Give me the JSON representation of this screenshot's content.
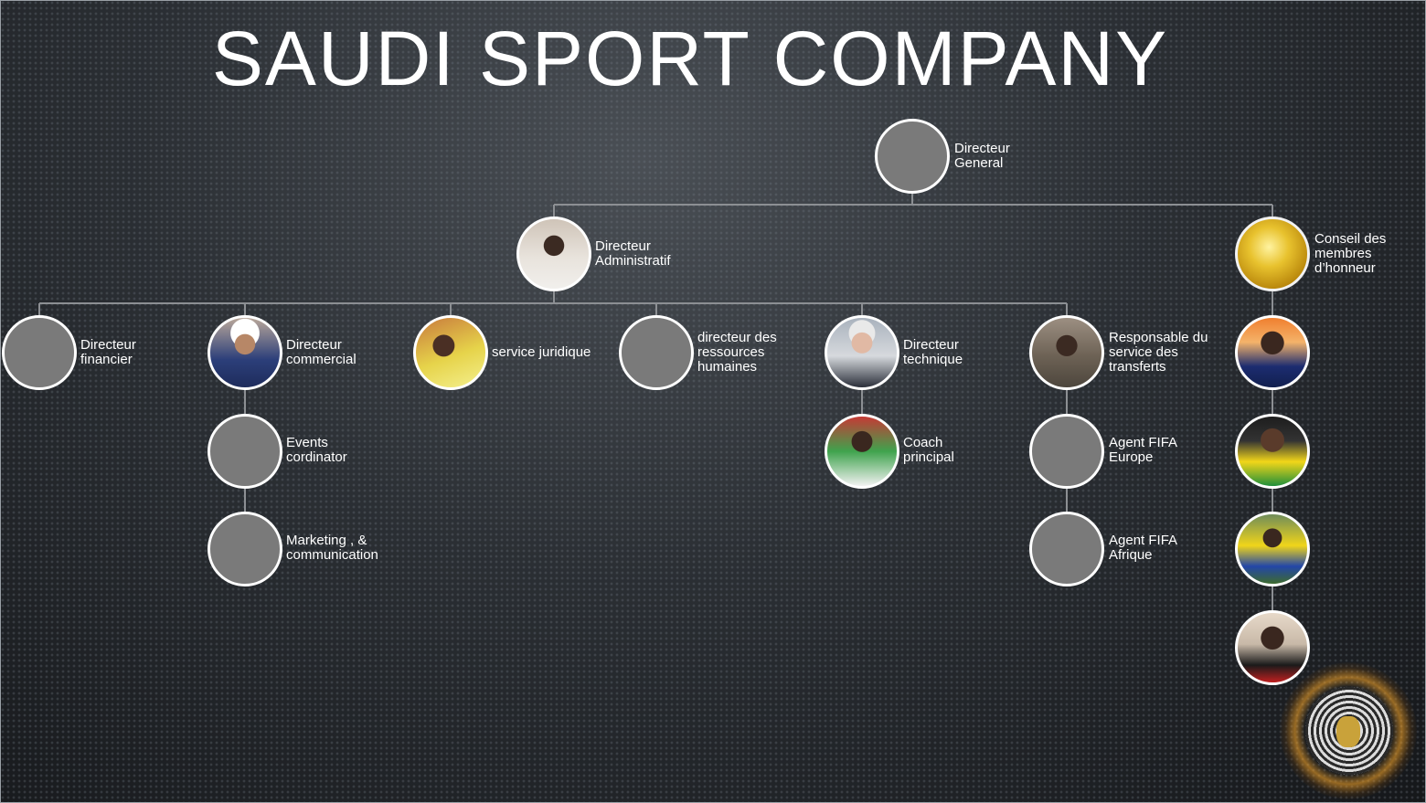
{
  "title": "SAUDI SPORT COMPANY",
  "nodes": {
    "general": {
      "label": "Directeur General",
      "icon": "placeholder-circle"
    },
    "admin": {
      "label": "Directeur Administratif",
      "icon": "person-photo"
    },
    "conseil": {
      "label": "Conseil des membres d’honneur",
      "icon": "gold-medal-photo"
    },
    "financier": {
      "label": "Directeur financier",
      "icon": "placeholder-circle"
    },
    "commercial": {
      "label": "Directeur commercial",
      "icon": "person-photo"
    },
    "juridique": {
      "label": "service juridique",
      "icon": "person-photo"
    },
    "rh": {
      "label": "directeur des ressources humaines",
      "icon": "placeholder-circle"
    },
    "technique": {
      "label": "Directeur technique",
      "icon": "person-photo"
    },
    "transferts": {
      "label": "Responsable du service des transferts",
      "icon": "person-photo"
    },
    "events": {
      "label": "Events cordinator",
      "icon": "placeholder-circle"
    },
    "marketing": {
      "label": "Marketing , & communication",
      "icon": "placeholder-circle"
    },
    "coach": {
      "label": "Coach principal",
      "icon": "person-photo"
    },
    "agent_eu": {
      "label": "Agent FIFA Europe",
      "icon": "placeholder-circle"
    },
    "agent_af": {
      "label": "Agent FIFA Afrique",
      "icon": "placeholder-circle"
    },
    "member1": {
      "label": "",
      "icon": "person-photo"
    },
    "member2": {
      "label": "",
      "icon": "person-photo"
    },
    "member3": {
      "label": "",
      "icon": "person-photo"
    },
    "member4": {
      "label": "",
      "icon": "person-photo"
    }
  },
  "colors": {
    "line": "#8c8f93",
    "node_fill": "#7a7a7a",
    "node_border": "#ffffff",
    "text": "#ffffff"
  }
}
